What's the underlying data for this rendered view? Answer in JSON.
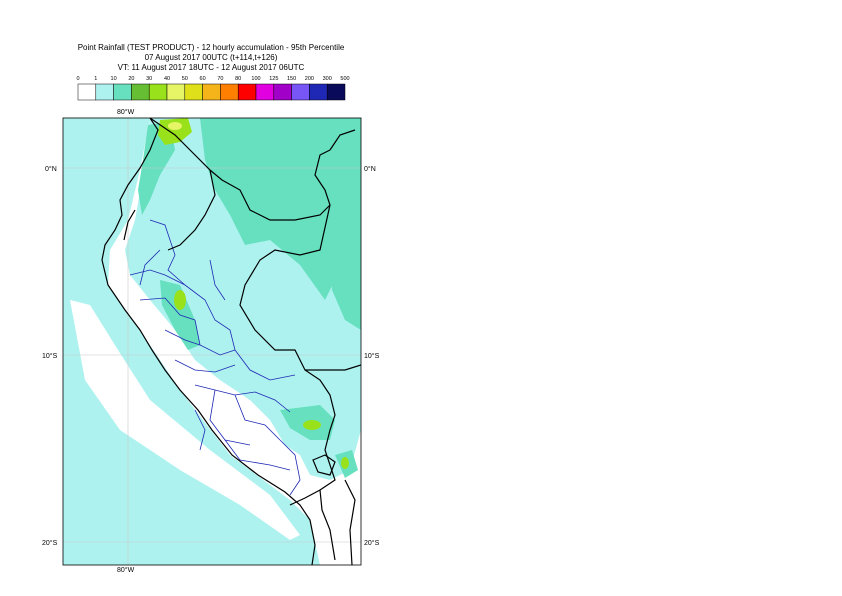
{
  "header": {
    "line1": "Point Rainfall (TEST PRODUCT) - 12 hourly accumulation - 95th Percentile",
    "line2": "07 August 2017 00UTC (t+114,t+126)",
    "line3": "VT: 11 August 2017 18UTC - 12 August 2017 06UTC"
  },
  "legend": {
    "thresholds": [
      "0",
      "1",
      "10",
      "20",
      "30",
      "40",
      "50",
      "60",
      "70",
      "80",
      "100",
      "125",
      "150",
      "200",
      "300",
      "500"
    ],
    "colors": [
      "#ffffff",
      "#aef2f0",
      "#66e0bf",
      "#66bf33",
      "#99e11a",
      "#e6f566",
      "#e0e01a",
      "#f5b41a",
      "#ff7f00",
      "#ff0000",
      "#e000e0",
      "#a000c8",
      "#7855f5",
      "#1e28b4",
      "#0a0a5a"
    ]
  },
  "map": {
    "lon_labels": {
      "top": "80°W",
      "bottom": "80°W"
    },
    "lat_labels": [
      "0°N",
      "10°S",
      "20°S"
    ],
    "colors": {
      "ocean_rain": "#aef2f0",
      "land_rain": "#aef2f0",
      "heavy_rain": "#66e0bf",
      "spot_rain": "#99e11a",
      "peak_rain": "#e6f566",
      "border": "#000000",
      "region": "#1e28b4"
    }
  }
}
